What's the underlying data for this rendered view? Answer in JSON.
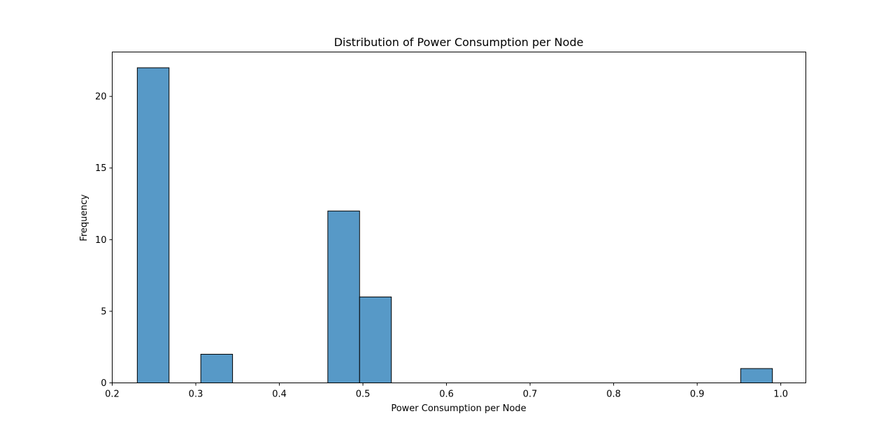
{
  "chart_data": {
    "type": "bar",
    "title": "Distribution of Power Consumption per Node",
    "xlabel": "Power Consumption per Node",
    "ylabel": "Frequency",
    "xlim": [
      0.2,
      1.03
    ],
    "ylim": [
      0,
      23.1
    ],
    "xticks": [
      0.2,
      0.3,
      0.4,
      0.5,
      0.6,
      0.7,
      0.8,
      0.9,
      1.0
    ],
    "xtick_labels": [
      "0.2",
      "0.3",
      "0.4",
      "0.5",
      "0.6",
      "0.7",
      "0.8",
      "0.9",
      "1.0"
    ],
    "yticks": [
      0,
      5,
      10,
      15,
      20
    ],
    "ytick_labels": [
      "0",
      "5",
      "10",
      "15",
      "20"
    ],
    "grid": false,
    "legend": "none",
    "bar_color": "#5799c7",
    "edge_color": "#000000",
    "bins": [
      {
        "start": 0.23,
        "end": 0.268,
        "count": 22
      },
      {
        "start": 0.306,
        "end": 0.344,
        "count": 2
      },
      {
        "start": 0.458,
        "end": 0.496,
        "count": 12
      },
      {
        "start": 0.496,
        "end": 0.534,
        "count": 6
      },
      {
        "start": 0.952,
        "end": 0.99,
        "count": 1
      }
    ]
  }
}
